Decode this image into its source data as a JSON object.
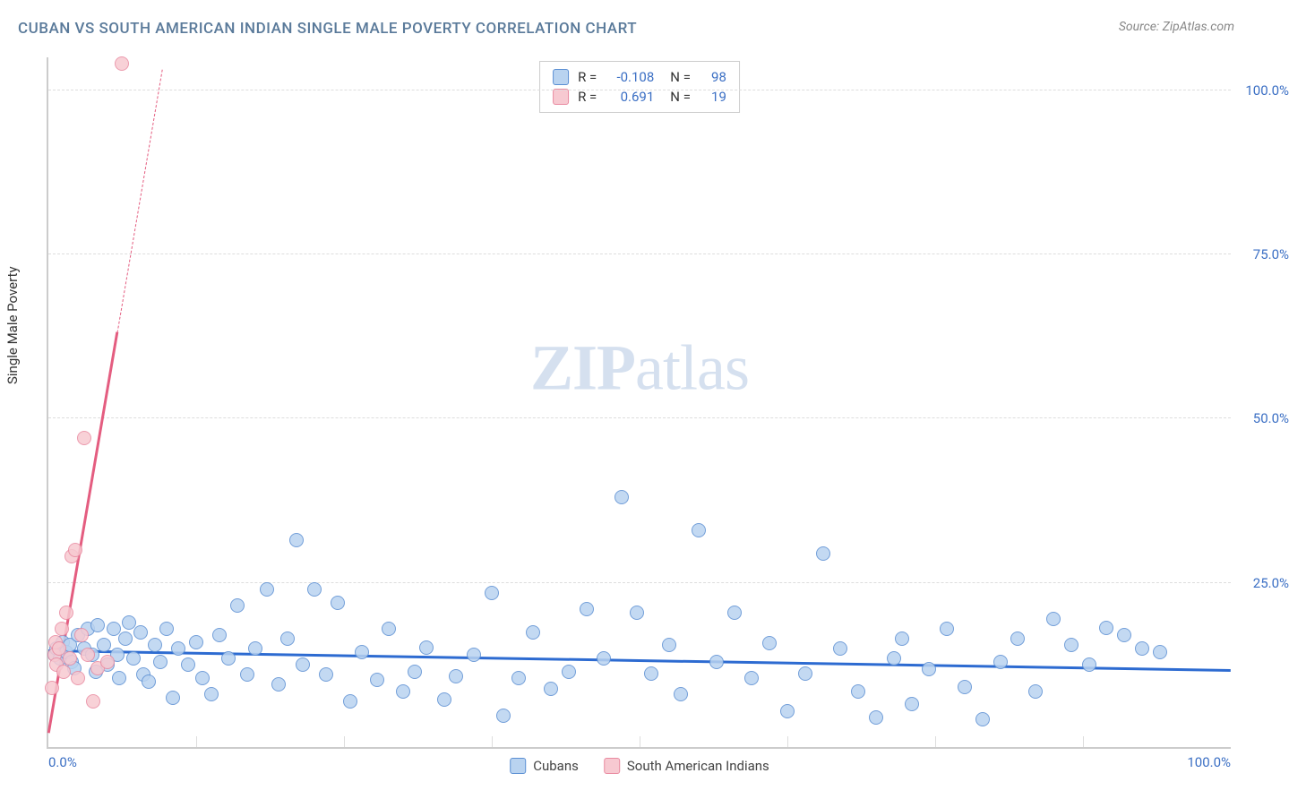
{
  "title": "CUBAN VS SOUTH AMERICAN INDIAN SINGLE MALE POVERTY CORRELATION CHART",
  "source": "Source: ZipAtlas.com",
  "ylabel": "Single Male Poverty",
  "watermark_zip": "ZIP",
  "watermark_rest": "atlas",
  "chart": {
    "type": "scatter",
    "xlim": [
      0,
      100
    ],
    "ylim": [
      0,
      105
    ],
    "xtick_labels": [
      "0.0%",
      "100.0%"
    ],
    "xtick_positions": [
      0,
      100
    ],
    "ytick_labels": [
      "25.0%",
      "50.0%",
      "75.0%",
      "100.0%"
    ],
    "ytick_positions": [
      25,
      50,
      75,
      100
    ],
    "xtick_minor_positions": [
      12.5,
      25,
      37.5,
      50,
      62.5,
      75,
      87.5
    ],
    "background_color": "#ffffff",
    "grid_color": "#dddddd",
    "axis_color": "#cccccc",
    "tick_label_color": "#3b6fc4",
    "point_radius": 8
  },
  "series": [
    {
      "name": "Cubans",
      "color_fill": "#b9d3f0",
      "color_stroke": "#5b8fd3",
      "trend": {
        "color": "#2d6bd1",
        "x1": 0,
        "y1": 14.5,
        "x2": 100,
        "y2": 11.5,
        "width": 2.5
      },
      "stats": {
        "R_label": "R =",
        "R": "-0.108",
        "N_label": "N =",
        "N": "98"
      },
      "points": [
        [
          0.5,
          14
        ],
        [
          0.7,
          15
        ],
        [
          1.0,
          13.5
        ],
        [
          1.2,
          16
        ],
        [
          1.5,
          14.5
        ],
        [
          1.8,
          15.5
        ],
        [
          2.0,
          13
        ],
        [
          2.2,
          12
        ],
        [
          2.5,
          17
        ],
        [
          3.0,
          15
        ],
        [
          3.3,
          18
        ],
        [
          3.7,
          14
        ],
        [
          4.0,
          11.5
        ],
        [
          4.2,
          18.5
        ],
        [
          4.7,
          15.5
        ],
        [
          5.0,
          12.5
        ],
        [
          5.5,
          18
        ],
        [
          5.8,
          14
        ],
        [
          6.0,
          10.5
        ],
        [
          6.5,
          16.5
        ],
        [
          6.8,
          19
        ],
        [
          7.2,
          13.5
        ],
        [
          7.8,
          17.5
        ],
        [
          8.0,
          11
        ],
        [
          8.5,
          10
        ],
        [
          9.0,
          15.5
        ],
        [
          9.5,
          13
        ],
        [
          10,
          18
        ],
        [
          10.5,
          7.5
        ],
        [
          11,
          15
        ],
        [
          11.8,
          12.5
        ],
        [
          12.5,
          16
        ],
        [
          13,
          10.5
        ],
        [
          13.8,
          8
        ],
        [
          14.5,
          17
        ],
        [
          15.2,
          13.5
        ],
        [
          16,
          21.5
        ],
        [
          16.8,
          11
        ],
        [
          17.5,
          15
        ],
        [
          18.5,
          24
        ],
        [
          19.5,
          9.5
        ],
        [
          20.2,
          16.5
        ],
        [
          21,
          31.5
        ],
        [
          21.5,
          12.5
        ],
        [
          22.5,
          24
        ],
        [
          23.5,
          11
        ],
        [
          24.5,
          22
        ],
        [
          25.5,
          7
        ],
        [
          26.5,
          14.5
        ],
        [
          27.8,
          10.2
        ],
        [
          28.8,
          18
        ],
        [
          30,
          8.5
        ],
        [
          31,
          11.5
        ],
        [
          32,
          15.2
        ],
        [
          33.5,
          7.2
        ],
        [
          34.5,
          10.8
        ],
        [
          36,
          14
        ],
        [
          37.5,
          23.5
        ],
        [
          38.5,
          4.8
        ],
        [
          39.8,
          10.5
        ],
        [
          41,
          17.5
        ],
        [
          42.5,
          8.8
        ],
        [
          44,
          11.5
        ],
        [
          45.5,
          21
        ],
        [
          47,
          13.5
        ],
        [
          48.5,
          38
        ],
        [
          49.8,
          20.5
        ],
        [
          51,
          11.2
        ],
        [
          52.5,
          15.5
        ],
        [
          53.5,
          8
        ],
        [
          55,
          33
        ],
        [
          56.5,
          13
        ],
        [
          58,
          20.5
        ],
        [
          59.5,
          10.5
        ],
        [
          61,
          15.8
        ],
        [
          62.5,
          5.5
        ],
        [
          64,
          11.2
        ],
        [
          65.5,
          29.5
        ],
        [
          67,
          15
        ],
        [
          68.5,
          8.5
        ],
        [
          70,
          4.5
        ],
        [
          71.5,
          13.5
        ],
        [
          73,
          6.5
        ],
        [
          74.5,
          11.8
        ],
        [
          76,
          18
        ],
        [
          77.5,
          9.2
        ],
        [
          79,
          4.2
        ],
        [
          80.5,
          13
        ],
        [
          82,
          16.5
        ],
        [
          83.5,
          8.5
        ],
        [
          85,
          19.5
        ],
        [
          86.5,
          15.5
        ],
        [
          88,
          12.5
        ],
        [
          89.5,
          18.2
        ],
        [
          91,
          17
        ],
        [
          92.5,
          15
        ],
        [
          94,
          14.5
        ],
        [
          72.2,
          16.5
        ]
      ]
    },
    {
      "name": "South American Indians",
      "color_fill": "#f7c9d1",
      "color_stroke": "#e98aa0",
      "trend": {
        "color": "#e45d80",
        "x1": 0,
        "y1": 2,
        "x2": 5.8,
        "y2": 63,
        "dash_x2": 9.6,
        "dash_y2": 103,
        "width": 2.5
      },
      "stats": {
        "R_label": "R =",
        "R": "0.691",
        "N_label": "N =",
        "N": "19"
      },
      "points": [
        [
          0.3,
          9
        ],
        [
          0.5,
          14
        ],
        [
          0.6,
          16
        ],
        [
          0.7,
          12.5
        ],
        [
          0.9,
          15
        ],
        [
          1.1,
          18
        ],
        [
          1.3,
          11.5
        ],
        [
          1.5,
          20.5
        ],
        [
          1.8,
          13.5
        ],
        [
          2.0,
          29
        ],
        [
          2.3,
          30
        ],
        [
          2.5,
          10.5
        ],
        [
          2.8,
          17
        ],
        [
          3.0,
          47
        ],
        [
          3.3,
          14
        ],
        [
          3.8,
          7
        ],
        [
          4.2,
          12
        ],
        [
          5.0,
          13
        ],
        [
          6.2,
          104
        ]
      ]
    }
  ],
  "legend_bottom": [
    {
      "label": "Cubans",
      "fill": "#b9d3f0",
      "stroke": "#5b8fd3"
    },
    {
      "label": "South American Indians",
      "fill": "#f7c9d1",
      "stroke": "#e98aa0"
    }
  ]
}
